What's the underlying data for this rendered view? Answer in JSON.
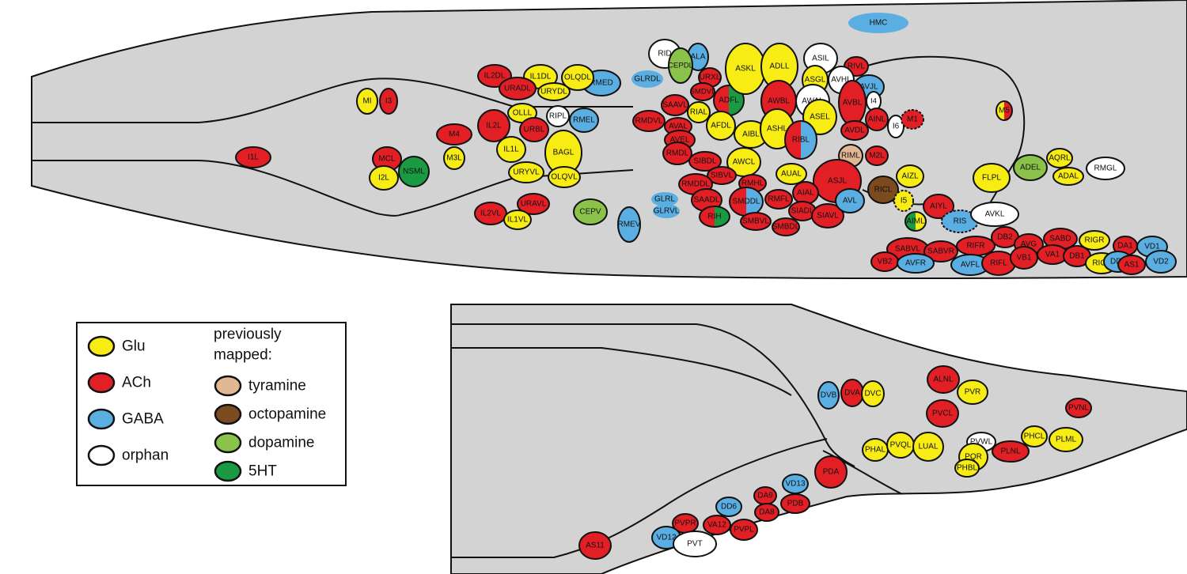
{
  "colors": {
    "Glu": "#f7ec13",
    "ACh": "#e31f26",
    "GABA": "#5aaee1",
    "orphan": "#ffffff",
    "tyramine": "#e2b894",
    "octopamine": "#7b4a1e",
    "dopamine": "#8bc34a",
    "5HT": "#1b9a44",
    "body": "#d3d3d3",
    "outline": "#111111"
  },
  "legend": {
    "items": [
      {
        "key": "Glu",
        "label": "Glu"
      },
      {
        "key": "ACh",
        "label": "ACh"
      },
      {
        "key": "GABA",
        "label": "GABA"
      },
      {
        "key": "orphan",
        "label": "orphan"
      }
    ],
    "previously_title_line1": "previously",
    "previously_title_line2": "mapped:",
    "previously_items": [
      {
        "key": "tyramine",
        "label": "tyramine"
      },
      {
        "key": "octopamine",
        "label": "octopamine"
      },
      {
        "key": "dopamine",
        "label": "dopamine"
      },
      {
        "key": "5HT",
        "label": "5HT"
      }
    ]
  },
  "head_neurons": [
    {
      "name": "HMC",
      "type": "GABA"
    },
    {
      "name": "RID",
      "type": "orphan"
    },
    {
      "name": "ALA",
      "type": "GABA"
    },
    {
      "name": "CEPDL",
      "type": "dopamine"
    },
    {
      "name": "GLRDL",
      "type": "GABA"
    },
    {
      "name": "URXL",
      "type": "ACh"
    },
    {
      "name": "SMDVL",
      "type": "ACh"
    },
    {
      "name": "SAAVL",
      "type": "ACh"
    },
    {
      "name": "ADFL",
      "type": "ACh"
    },
    {
      "name": "ASKL",
      "type": "Glu"
    },
    {
      "name": "ADLL",
      "type": "Glu"
    },
    {
      "name": "ASIL",
      "type": "orphan"
    },
    {
      "name": "RIVL",
      "type": "ACh"
    },
    {
      "name": "ASGL",
      "type": "Glu"
    },
    {
      "name": "AVHL",
      "type": "orphan"
    },
    {
      "name": "AWBL",
      "type": "ACh"
    },
    {
      "name": "AWAL",
      "type": "orphan"
    },
    {
      "name": "AVJL",
      "type": "GABA"
    },
    {
      "name": "AVBL",
      "type": "ACh"
    },
    {
      "name": "I4",
      "type": "orphan"
    },
    {
      "name": "AINL",
      "type": "ACh"
    },
    {
      "name": "I6",
      "type": "orphan"
    },
    {
      "name": "M1",
      "type": "ACh"
    },
    {
      "name": "AVDL",
      "type": "ACh"
    },
    {
      "name": "RMED",
      "type": "GABA"
    },
    {
      "name": "IL2DL",
      "type": "ACh"
    },
    {
      "name": "IL1DL",
      "type": "Glu"
    },
    {
      "name": "OLQDL",
      "type": "Glu"
    },
    {
      "name": "URADL",
      "type": "ACh"
    },
    {
      "name": "URYDL",
      "type": "Glu"
    },
    {
      "name": "MI",
      "type": "Glu"
    },
    {
      "name": "I3",
      "type": "ACh"
    },
    {
      "name": "OLLL",
      "type": "Glu"
    },
    {
      "name": "RIPL",
      "type": "orphan"
    },
    {
      "name": "RMEL",
      "type": "GABA"
    },
    {
      "name": "IL2L",
      "type": "ACh"
    },
    {
      "name": "URBL",
      "type": "ACh"
    },
    {
      "name": "RMDVL",
      "type": "ACh"
    },
    {
      "name": "RIAL",
      "type": "Glu"
    },
    {
      "name": "AVAL",
      "type": "ACh"
    },
    {
      "name": "AFDL",
      "type": "Glu"
    },
    {
      "name": "AVEL",
      "type": "ACh"
    },
    {
      "name": "AIBL",
      "type": "Glu"
    },
    {
      "name": "ASHL",
      "type": "Glu"
    },
    {
      "name": "ASEL",
      "type": "Glu"
    },
    {
      "name": "RIBL",
      "type": "ACh"
    },
    {
      "name": "M4",
      "type": "ACh"
    },
    {
      "name": "IL1L",
      "type": "Glu"
    },
    {
      "name": "BAGL",
      "type": "Glu"
    },
    {
      "name": "M3L",
      "type": "Glu"
    },
    {
      "name": "I1L",
      "type": "ACh"
    },
    {
      "name": "MCL",
      "type": "ACh"
    },
    {
      "name": "NSML",
      "type": "5HT"
    },
    {
      "name": "I2L",
      "type": "Glu"
    },
    {
      "name": "RMDL",
      "type": "ACh"
    },
    {
      "name": "SIBDL",
      "type": "ACh"
    },
    {
      "name": "AWCL",
      "type": "Glu"
    },
    {
      "name": "RIML",
      "type": "tyramine"
    },
    {
      "name": "M2L",
      "type": "ACh"
    },
    {
      "name": "M5",
      "type": "Glu"
    },
    {
      "name": "URYVL",
      "type": "Glu"
    },
    {
      "name": "OLQVL",
      "type": "Glu"
    },
    {
      "name": "SIBVL",
      "type": "ACh"
    },
    {
      "name": "AUAL",
      "type": "Glu"
    },
    {
      "name": "AIZL",
      "type": "Glu"
    },
    {
      "name": "ADEL",
      "type": "dopamine"
    },
    {
      "name": "AQRL",
      "type": "Glu"
    },
    {
      "name": "FLPL",
      "type": "Glu"
    },
    {
      "name": "ADAL",
      "type": "Glu"
    },
    {
      "name": "RMGL",
      "type": "orphan"
    },
    {
      "name": "RMDDL",
      "type": "ACh"
    },
    {
      "name": "RMHL",
      "type": "ACh"
    },
    {
      "name": "ASJL",
      "type": "ACh"
    },
    {
      "name": "RICL",
      "type": "octopamine"
    },
    {
      "name": "GLRL",
      "type": "GABA"
    },
    {
      "name": "GLRVL",
      "type": "GABA"
    },
    {
      "name": "SAADL",
      "type": "ACh"
    },
    {
      "name": "SMDDL",
      "type": "ACh"
    },
    {
      "name": "RMFL",
      "type": "ACh"
    },
    {
      "name": "AIAL",
      "type": "ACh"
    },
    {
      "name": "I5",
      "type": "Glu"
    },
    {
      "name": "URAVL",
      "type": "ACh"
    },
    {
      "name": "IL2VL",
      "type": "ACh"
    },
    {
      "name": "IL1VL",
      "type": "Glu"
    },
    {
      "name": "CEPV",
      "type": "dopamine"
    },
    {
      "name": "RMEV",
      "type": "GABA"
    },
    {
      "name": "RIH",
      "type": "ACh"
    },
    {
      "name": "SIADL",
      "type": "ACh"
    },
    {
      "name": "SIAVL",
      "type": "ACh"
    },
    {
      "name": "AVL",
      "type": "GABA"
    },
    {
      "name": "AIYL",
      "type": "ACh"
    },
    {
      "name": "SMBVL",
      "type": "ACh"
    },
    {
      "name": "SMBDL",
      "type": "ACh"
    },
    {
      "name": "AIML",
      "type": "Glu"
    },
    {
      "name": "RIS",
      "type": "GABA"
    },
    {
      "name": "AVKL",
      "type": "orphan"
    },
    {
      "name": "SABVL",
      "type": "ACh"
    },
    {
      "name": "SABVR",
      "type": "ACh"
    },
    {
      "name": "RIFR",
      "type": "ACh"
    },
    {
      "name": "DB2",
      "type": "ACh"
    },
    {
      "name": "AVG",
      "type": "ACh"
    },
    {
      "name": "SABD",
      "type": "ACh"
    },
    {
      "name": "RIGR",
      "type": "Glu"
    },
    {
      "name": "DA1",
      "type": "ACh"
    },
    {
      "name": "VD1",
      "type": "GABA"
    },
    {
      "name": "VB2",
      "type": "ACh"
    },
    {
      "name": "AVFR",
      "type": "GABA"
    },
    {
      "name": "AVFL",
      "type": "GABA"
    },
    {
      "name": "RIFL",
      "type": "ACh"
    },
    {
      "name": "VB1",
      "type": "ACh"
    },
    {
      "name": "VA1",
      "type": "ACh"
    },
    {
      "name": "DB1",
      "type": "ACh"
    },
    {
      "name": "RIGL",
      "type": "Glu"
    },
    {
      "name": "DD1",
      "type": "GABA"
    },
    {
      "name": "AS1",
      "type": "ACh"
    },
    {
      "name": "VD2",
      "type": "GABA"
    }
  ],
  "tail_neurons": [
    {
      "name": "DVB",
      "type": "GABA"
    },
    {
      "name": "DVA",
      "type": "ACh"
    },
    {
      "name": "DVC",
      "type": "Glu"
    },
    {
      "name": "ALNL",
      "type": "ACh"
    },
    {
      "name": "PVR",
      "type": "Glu"
    },
    {
      "name": "PVCL",
      "type": "ACh"
    },
    {
      "name": "PVNL",
      "type": "ACh"
    },
    {
      "name": "PHAL",
      "type": "Glu"
    },
    {
      "name": "PVQL",
      "type": "Glu"
    },
    {
      "name": "LUAL",
      "type": "Glu"
    },
    {
      "name": "PVWL",
      "type": "orphan"
    },
    {
      "name": "PHCL",
      "type": "Glu"
    },
    {
      "name": "PLML",
      "type": "Glu"
    },
    {
      "name": "PQR",
      "type": "Glu"
    },
    {
      "name": "PLNL",
      "type": "ACh"
    },
    {
      "name": "PHBL",
      "type": "Glu"
    },
    {
      "name": "PDA",
      "type": "ACh"
    },
    {
      "name": "VD13",
      "type": "GABA"
    },
    {
      "name": "DA9",
      "type": "ACh"
    },
    {
      "name": "PDB",
      "type": "ACh"
    },
    {
      "name": "DD6",
      "type": "GABA"
    },
    {
      "name": "DA8",
      "type": "ACh"
    },
    {
      "name": "PVPR",
      "type": "ACh"
    },
    {
      "name": "VA12",
      "type": "ACh"
    },
    {
      "name": "PVPL",
      "type": "ACh"
    },
    {
      "name": "VD12",
      "type": "GABA"
    },
    {
      "name": "PVT",
      "type": "orphan"
    },
    {
      "name": "AS11",
      "type": "ACh"
    }
  ]
}
